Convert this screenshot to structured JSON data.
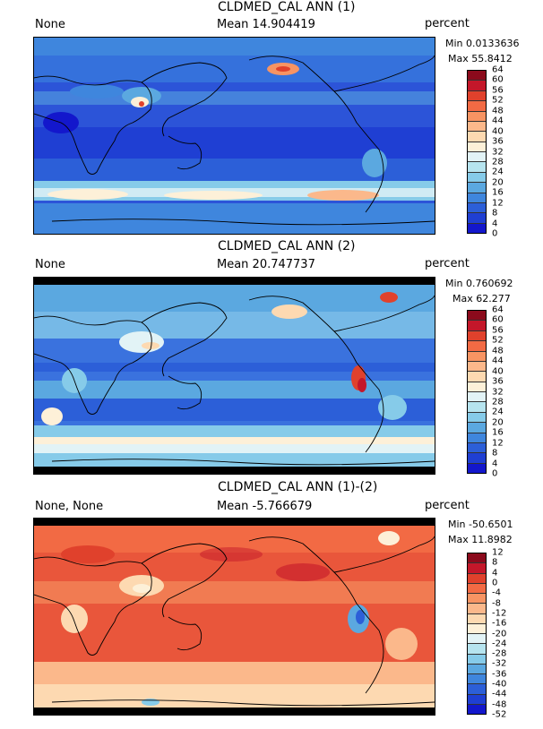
{
  "panels": [
    {
      "title": "CLDMED_CAL ANN (1)",
      "left_label": "None",
      "mean_label": "Mean 14.904419",
      "units": "percent",
      "min_label": "Min 0.0133636",
      "max_label": "Max 55.8412",
      "colorbar_levels": [
        "64",
        "60",
        "56",
        "52",
        "48",
        "44",
        "40",
        "36",
        "32",
        "28",
        "24",
        "20",
        "16",
        "12",
        "8",
        "4",
        "0"
      ]
    },
    {
      "title": "CLDMED_CAL ANN (2)",
      "left_label": "None",
      "mean_label": "Mean 20.747737",
      "units": "percent",
      "min_label": "Min 0.760692",
      "max_label": "Max 62.277",
      "colorbar_levels": [
        "64",
        "60",
        "56",
        "52",
        "48",
        "44",
        "40",
        "36",
        "32",
        "28",
        "24",
        "20",
        "16",
        "12",
        "8",
        "4",
        "0"
      ]
    },
    {
      "title": "CLDMED_CAL ANN (1)-(2)",
      "left_label": "None, None",
      "mean_label": "Mean -5.766679",
      "units": "percent",
      "min_label": "Min -50.6501",
      "max_label": "Max 11.8982",
      "colorbar_levels": [
        "12",
        "8",
        "4",
        "0",
        "-4",
        "-8",
        "-12",
        "-16",
        "-20",
        "-24",
        "-28",
        "-32",
        "-36",
        "-40",
        "-44",
        "-48",
        "-52"
      ]
    }
  ],
  "colors": {
    "palette": [
      "#8b0a1c",
      "#c4172a",
      "#e0412c",
      "#f26a44",
      "#f79463",
      "#fbb88b",
      "#fdd9b1",
      "#fdf0d8",
      "#e2f3f6",
      "#b6e4ef",
      "#86cbe9",
      "#5ba8e0",
      "#3f86dd",
      "#2c5fd8",
      "#1f3fd3",
      "#1317cc"
    ],
    "map1_base": "#2b4fd6",
    "map2_base": "#3a6fe0",
    "map3_base": "#e8553a"
  }
}
